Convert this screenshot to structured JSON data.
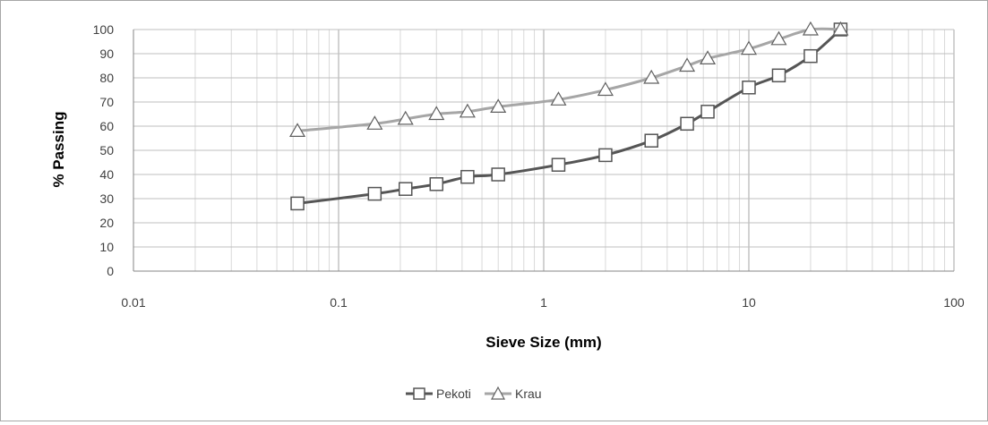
{
  "chart_data": {
    "type": "line",
    "title": "",
    "xlabel": "Sieve Size (mm)",
    "ylabel": "% Passing",
    "x_scale": "log",
    "xlim": [
      0.01,
      100
    ],
    "ylim": [
      0,
      100
    ],
    "x_ticks": [
      "0.01",
      "0.1",
      "1",
      "10",
      "100"
    ],
    "y_ticks": [
      "0",
      "10",
      "20",
      "30",
      "40",
      "50",
      "60",
      "70",
      "80",
      "90",
      "100"
    ],
    "grid": "on",
    "legend": "bottom",
    "series": [
      {
        "name": "Pekoti",
        "marker": "square",
        "color": "#555555",
        "x": [
          0.063,
          0.15,
          0.212,
          0.3,
          0.425,
          0.6,
          1.18,
          2.0,
          3.35,
          5.0,
          6.3,
          10.0,
          14.0,
          20.0,
          28.0
        ],
        "y": [
          28,
          32,
          34,
          36,
          39,
          40,
          44,
          48,
          54,
          61,
          66,
          76,
          81,
          89,
          100
        ]
      },
      {
        "name": "Krau",
        "marker": "triangle",
        "color": "#a6a6a6",
        "x": [
          0.063,
          0.15,
          0.212,
          0.3,
          0.425,
          0.6,
          1.18,
          2.0,
          3.35,
          5.0,
          6.3,
          10.0,
          14.0,
          20.0,
          28.0
        ],
        "y": [
          58,
          61,
          63,
          65,
          66,
          68,
          71,
          75,
          80,
          85,
          88,
          92,
          96,
          100,
          100
        ]
      }
    ]
  }
}
